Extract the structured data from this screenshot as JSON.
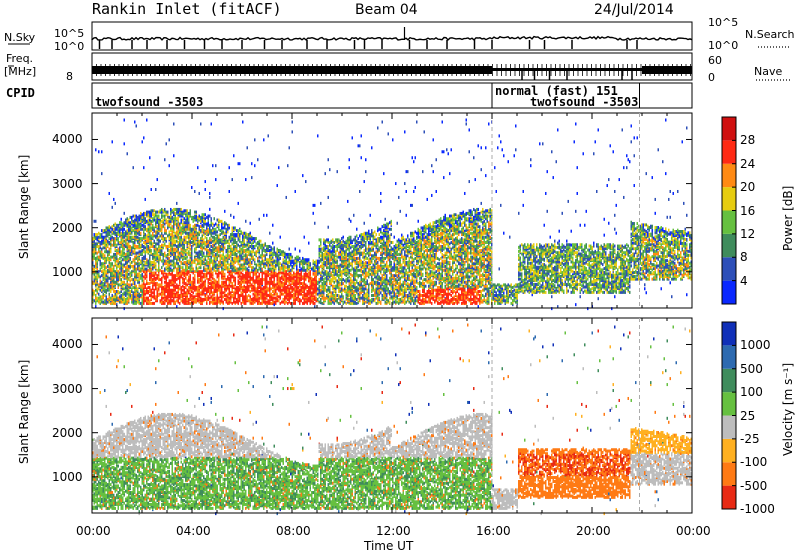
{
  "header": {
    "title": "Rankin Inlet (fitACF)",
    "beam": "Beam 04",
    "date": "24/Jul/2014"
  },
  "strip_labels": {
    "nsky": "N.Sky",
    "nsky_ticks": [
      "10^5",
      "10^0"
    ],
    "nsearch": "N.Search",
    "freq": "Freq.",
    "freq_unit": "[MHz]",
    "freq_ticks": [
      "8"
    ],
    "nave_ticks": [
      "60",
      "0"
    ],
    "nave": "Nave",
    "cpid": "CPID"
  },
  "cpid_segments": [
    {
      "label": "twofsound -3503"
    },
    {
      "label": "normal (fast) 151"
    },
    {
      "label": "twofsound -3503"
    }
  ],
  "chart_data": [
    {
      "type": "heatmap",
      "panel": "power",
      "ylabel": "Slant Range [km]",
      "xlabel": "",
      "yticks": [
        "1000",
        "2000",
        "3000",
        "4000"
      ],
      "ylim": [
        180,
        4600
      ],
      "xlim": [
        0,
        24
      ],
      "colorbar_label": "Power [dB]",
      "colorbar_ticks": [
        "4",
        "8",
        "12",
        "16",
        "20",
        "24",
        "28"
      ],
      "colors": [
        "#0a28ff",
        "#2d4fb8",
        "#3f8c5c",
        "#66c040",
        "#e6cc10",
        "#ff8a14",
        "#ff2a14",
        "#d01010"
      ],
      "approx_regions": [
        {
          "t0": 0.0,
          "t1": 16.0,
          "r0": 200,
          "r1": 2500,
          "level": "mixed 4-28 dB"
        },
        {
          "t0": 16.5,
          "t1": 22.0,
          "r0": 600,
          "r1": 1700,
          "level": "mixed 4-24 dB"
        },
        {
          "t0": 22.0,
          "t1": 24.0,
          "r0": 900,
          "r1": 2200,
          "level": "mixed 4-28 dB"
        }
      ]
    },
    {
      "type": "heatmap",
      "panel": "velocity",
      "ylabel": "Slant Range [km]",
      "xlabel": "Time UT",
      "xticks": [
        "00:00",
        "04:00",
        "08:00",
        "12:00",
        "16:00",
        "20:00",
        "00:00"
      ],
      "yticks": [
        "1000",
        "2000",
        "3000",
        "4000"
      ],
      "ylim": [
        180,
        4600
      ],
      "xlim": [
        0,
        24
      ],
      "colorbar_label": "Velocity [m s⁻¹]",
      "colorbar_ticks": [
        "1000",
        "500",
        "100",
        "25",
        "-25",
        "-100",
        "-500",
        "-1000"
      ],
      "colors": [
        "#1030b8",
        "#2d6ab0",
        "#3f8c5c",
        "#66c040",
        "#bdbdbd",
        "#ffb020",
        "#ff7a14",
        "#e82a14"
      ],
      "approx_regions": [
        {
          "t0": 0.0,
          "t1": 16.0,
          "r0": 1500,
          "r1": 2600,
          "level": "-25 to 25 (gray)"
        },
        {
          "t0": 0.0,
          "t1": 16.0,
          "r0": 300,
          "r1": 1500,
          "level": "100 to 500 (green)"
        },
        {
          "t0": 16.5,
          "t1": 22.0,
          "r0": 600,
          "r1": 1700,
          "level": "-100 to -1000 (orange/red)"
        }
      ]
    }
  ]
}
